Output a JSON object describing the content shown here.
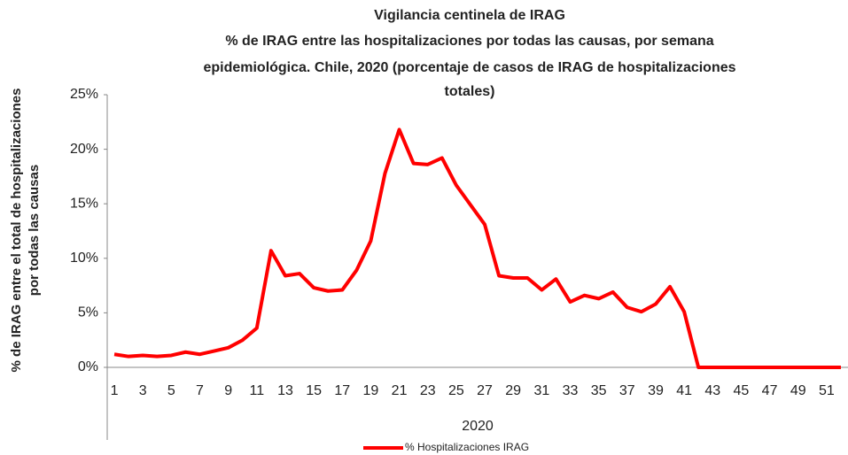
{
  "chart_data": {
    "type": "line",
    "title": "Vigilancia centinela de IRAG",
    "subtitle": [
      "% de IRAG entre las hospitalizaciones por todas las causas, por semana",
      "epidemiológica. Chile, 2020 (porcentaje de casos de IRAG de hospitalizaciones",
      "totales)"
    ],
    "x_label": "2020",
    "y_label": [
      "% de IRAG entre el total de hospitalizaciones",
      "por todas las causas"
    ],
    "categories": [
      "1",
      null,
      "3",
      null,
      "5",
      null,
      "7",
      null,
      "9",
      null,
      "11",
      null,
      "13",
      null,
      "15",
      null,
      "17",
      null,
      "19",
      null,
      "21",
      null,
      "23",
      null,
      "25",
      null,
      "27",
      null,
      "29",
      null,
      "31",
      null,
      "33",
      null,
      "35",
      null,
      "37",
      null,
      "39",
      null,
      "41",
      null,
      "43",
      null,
      "45",
      null,
      "47",
      null,
      "49",
      null,
      "51",
      null
    ],
    "series": [
      {
        "name": "% Hospitalizaciones IRAG",
        "color": "#ff0000",
        "values": [
          1.2,
          1.0,
          1.1,
          1.0,
          1.1,
          1.4,
          1.2,
          1.5,
          1.8,
          2.5,
          3.6,
          10.7,
          8.4,
          8.6,
          7.3,
          7.0,
          7.1,
          8.9,
          11.6,
          17.8,
          21.8,
          18.7,
          18.6,
          19.2,
          16.7,
          14.9,
          13.1,
          8.4,
          8.2,
          8.2,
          7.1,
          8.1,
          6.0,
          6.6,
          6.3,
          6.9,
          5.5,
          5.1,
          5.8,
          7.4,
          5.1,
          0,
          0,
          0,
          0,
          0,
          0,
          0,
          0,
          0,
          0,
          0
        ]
      }
    ],
    "ylim": [
      0,
      25
    ],
    "yticks": [
      {
        "value": 0,
        "label": "0%"
      },
      {
        "value": 5,
        "label": "5%"
      },
      {
        "value": 10,
        "label": "10%"
      },
      {
        "value": 15,
        "label": "15%"
      },
      {
        "value": 20,
        "label": "20%"
      },
      {
        "value": 25,
        "label": "25%"
      }
    ],
    "grid": false,
    "legend": "bottom"
  }
}
